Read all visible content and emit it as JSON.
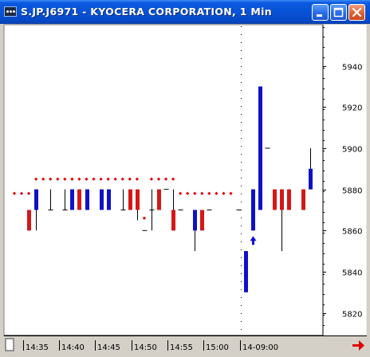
{
  "window": {
    "title": "S.JP.J6971 - KYOCERA CORPORATION, 1 Min"
  },
  "icons": {
    "app": "chart-app-icon",
    "minimize": "minimize-icon",
    "maximize": "maximize-icon",
    "close": "close-icon",
    "scroll_right": "scroll-right-arrow-icon",
    "buy_signal": "buy-arrow-icon"
  },
  "colors": {
    "up_bar": "#1010c8",
    "down_bar": "#d41818",
    "level_dot": "#e00000",
    "arrow": "#1010d0",
    "scroll_arrow": "#e00000",
    "title_bar": "#0852d6"
  },
  "chart_data": {
    "type": "candlestick",
    "title": "S.JP.J6971 - KYOCERA CORPORATION, 1 Min",
    "ylim": [
      5809,
      5960
    ],
    "y_ticks": [
      5940,
      5920,
      5900,
      5880,
      5860,
      5840,
      5820
    ],
    "x_tick_labels": [
      "14:35",
      "14:40",
      "14:45",
      "14:50",
      "14:55",
      "15:00",
      "14-09:00"
    ],
    "grid": false,
    "candles": [
      {
        "slot": 2,
        "open": 5870,
        "high": 5870,
        "low": 5860,
        "close": 5860
      },
      {
        "slot": 3,
        "open": 5870,
        "high": 5880,
        "low": 5860,
        "close": 5880
      },
      {
        "slot": 5,
        "open": 5870,
        "high": 5880,
        "low": 5870,
        "close": 5870
      },
      {
        "slot": 7,
        "open": 5870,
        "high": 5880,
        "low": 5870,
        "close": 5870
      },
      {
        "slot": 8,
        "open": 5870,
        "high": 5880,
        "low": 5870,
        "close": 5880
      },
      {
        "slot": 9,
        "open": 5880,
        "high": 5880,
        "low": 5870,
        "close": 5870
      },
      {
        "slot": 10,
        "open": 5870,
        "high": 5880,
        "low": 5870,
        "close": 5880
      },
      {
        "slot": 12,
        "open": 5870,
        "high": 5880,
        "low": 5870,
        "close": 5880
      },
      {
        "slot": 13,
        "open": 5870,
        "high": 5880,
        "low": 5870,
        "close": 5880
      },
      {
        "slot": 15,
        "open": 5870,
        "high": 5880,
        "low": 5870,
        "close": 5870
      },
      {
        "slot": 16,
        "open": 5880,
        "high": 5880,
        "low": 5870,
        "close": 5870
      },
      {
        "slot": 17,
        "open": 5880,
        "high": 5880,
        "low": 5865,
        "close": 5870
      },
      {
        "slot": 18,
        "open": 5860,
        "high": 5860,
        "low": 5860,
        "close": 5860
      },
      {
        "slot": 19,
        "open": 5870,
        "high": 5880,
        "low": 5860,
        "close": 5870
      },
      {
        "slot": 20,
        "open": 5880,
        "high": 5880,
        "low": 5870,
        "close": 5870
      },
      {
        "slot": 21,
        "open": 5880,
        "high": 5880,
        "low": 5880,
        "close": 5880
      },
      {
        "slot": 22,
        "open": 5870,
        "high": 5880,
        "low": 5860,
        "close": 5860
      },
      {
        "slot": 23,
        "open": 5870,
        "high": 5870,
        "low": 5870,
        "close": 5870
      },
      {
        "slot": 25,
        "open": 5860,
        "high": 5870,
        "low": 5850,
        "close": 5870
      },
      {
        "slot": 26,
        "open": 5870,
        "high": 5870,
        "low": 5860,
        "close": 5860
      },
      {
        "slot": 27,
        "open": 5870,
        "high": 5870,
        "low": 5870,
        "close": 5870
      },
      {
        "slot": 31,
        "open": 5870,
        "high": 5870,
        "low": 5870,
        "close": 5870
      },
      {
        "slot": 32,
        "open": 5830,
        "high": 5850,
        "low": 5830,
        "close": 5850
      },
      {
        "slot": 33,
        "open": 5860,
        "high": 5880,
        "low": 5860,
        "close": 5880
      },
      {
        "slot": 34,
        "open": 5870,
        "high": 5930,
        "low": 5870,
        "close": 5930
      },
      {
        "slot": 35,
        "open": 5900,
        "high": 5900,
        "low": 5900,
        "close": 5900
      },
      {
        "slot": 36,
        "open": 5880,
        "high": 5880,
        "low": 5870,
        "close": 5870
      },
      {
        "slot": 37,
        "open": 5880,
        "high": 5880,
        "low": 5850,
        "close": 5870
      },
      {
        "slot": 38,
        "open": 5880,
        "high": 5880,
        "low": 5870,
        "close": 5870
      },
      {
        "slot": 40,
        "open": 5880,
        "high": 5880,
        "low": 5870,
        "close": 5870
      },
      {
        "slot": 41,
        "open": 5880,
        "high": 5900,
        "low": 5880,
        "close": 5890
      }
    ],
    "dot_levels": [
      {
        "value": 5878,
        "from_slot": 0,
        "to_slot": 3
      },
      {
        "value": 5885,
        "from_slot": 3,
        "to_slot": 17
      },
      {
        "value": 5866,
        "from_slot": 18,
        "to_slot": 18
      },
      {
        "value": 5885,
        "from_slot": 19,
        "to_slot": 22
      },
      {
        "value": 5878,
        "from_slot": 23,
        "to_slot": 30
      }
    ],
    "signals": [
      {
        "slot": 33,
        "type": "buy-arrow",
        "value": 5855
      }
    ],
    "session_break_slot": 32
  }
}
